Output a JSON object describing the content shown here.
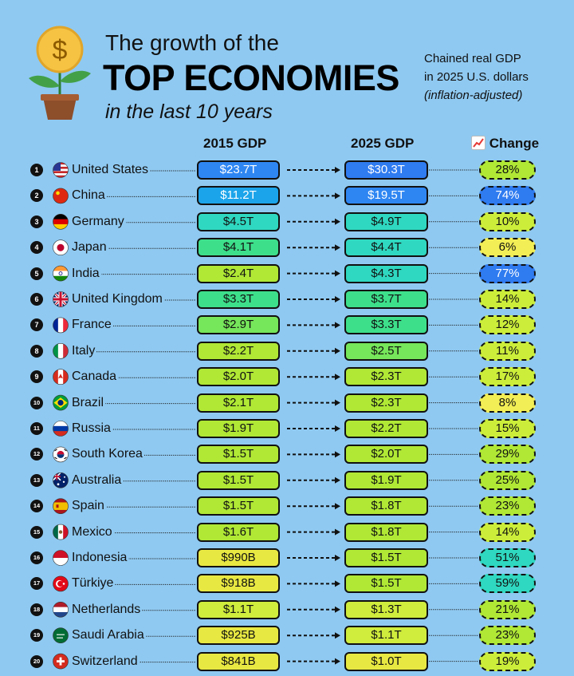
{
  "header": {
    "title_line1": "The growth of the",
    "title_line2": "TOP ECONOMIES",
    "title_line3": "in the last 10 years",
    "note_line1": "Chained real GDP",
    "note_line2": "in 2025 U.S. dollars",
    "note_line3": "(inflation-adjusted)",
    "col_2015": "2015 GDP",
    "col_2025": "2025 GDP",
    "col_change": "Change",
    "change_icon": "chart-increasing-icon",
    "plant_icon": "money-plant-icon"
  },
  "chart_data": {
    "type": "table",
    "title": "TOP ECONOMIES",
    "columns": [
      "2015 GDP",
      "2025 GDP",
      "Change"
    ],
    "rows": [
      {
        "rank": "1",
        "country": "United States",
        "gdp2015": "$23.7T",
        "gdp2025": "$30.3T",
        "change": "28%",
        "v2015": 23.7,
        "v2025": 30.3,
        "pct": 28
      },
      {
        "rank": "2",
        "country": "China",
        "gdp2015": "$11.2T",
        "gdp2025": "$19.5T",
        "change": "74%",
        "v2015": 11.2,
        "v2025": 19.5,
        "pct": 74
      },
      {
        "rank": "3",
        "country": "Germany",
        "gdp2015": "$4.5T",
        "gdp2025": "$4.9T",
        "change": "10%",
        "v2015": 4.5,
        "v2025": 4.9,
        "pct": 10
      },
      {
        "rank": "4",
        "country": "Japan",
        "gdp2015": "$4.1T",
        "gdp2025": "$4.4T",
        "change": "6%",
        "v2015": 4.1,
        "v2025": 4.4,
        "pct": 6
      },
      {
        "rank": "5",
        "country": "India",
        "gdp2015": "$2.4T",
        "gdp2025": "$4.3T",
        "change": "77%",
        "v2015": 2.4,
        "v2025": 4.3,
        "pct": 77
      },
      {
        "rank": "6",
        "country": "United Kingdom",
        "gdp2015": "$3.3T",
        "gdp2025": "$3.7T",
        "change": "14%",
        "v2015": 3.3,
        "v2025": 3.7,
        "pct": 14
      },
      {
        "rank": "7",
        "country": "France",
        "gdp2015": "$2.9T",
        "gdp2025": "$3.3T",
        "change": "12%",
        "v2015": 2.9,
        "v2025": 3.3,
        "pct": 12
      },
      {
        "rank": "8",
        "country": "Italy",
        "gdp2015": "$2.2T",
        "gdp2025": "$2.5T",
        "change": "11%",
        "v2015": 2.2,
        "v2025": 2.5,
        "pct": 11
      },
      {
        "rank": "9",
        "country": "Canada",
        "gdp2015": "$2.0T",
        "gdp2025": "$2.3T",
        "change": "17%",
        "v2015": 2.0,
        "v2025": 2.3,
        "pct": 17
      },
      {
        "rank": "10",
        "country": "Brazil",
        "gdp2015": "$2.1T",
        "gdp2025": "$2.3T",
        "change": "8%",
        "v2015": 2.1,
        "v2025": 2.3,
        "pct": 8
      },
      {
        "rank": "11",
        "country": "Russia",
        "gdp2015": "$1.9T",
        "gdp2025": "$2.2T",
        "change": "15%",
        "v2015": 1.9,
        "v2025": 2.2,
        "pct": 15
      },
      {
        "rank": "12",
        "country": "South Korea",
        "gdp2015": "$1.5T",
        "gdp2025": "$2.0T",
        "change": "29%",
        "v2015": 1.5,
        "v2025": 2.0,
        "pct": 29
      },
      {
        "rank": "13",
        "country": "Australia",
        "gdp2015": "$1.5T",
        "gdp2025": "$1.9T",
        "change": "25%",
        "v2015": 1.5,
        "v2025": 1.9,
        "pct": 25
      },
      {
        "rank": "14",
        "country": "Spain",
        "gdp2015": "$1.5T",
        "gdp2025": "$1.8T",
        "change": "23%",
        "v2015": 1.5,
        "v2025": 1.8,
        "pct": 23
      },
      {
        "rank": "15",
        "country": "Mexico",
        "gdp2015": "$1.6T",
        "gdp2025": "$1.8T",
        "change": "14%",
        "v2015": 1.6,
        "v2025": 1.8,
        "pct": 14
      },
      {
        "rank": "16",
        "country": "Indonesia",
        "gdp2015": "$990B",
        "gdp2025": "$1.5T",
        "change": "51%",
        "v2015": 0.99,
        "v2025": 1.5,
        "pct": 51
      },
      {
        "rank": "17",
        "country": "Türkiye",
        "gdp2015": "$918B",
        "gdp2025": "$1.5T",
        "change": "59%",
        "v2015": 0.918,
        "v2025": 1.5,
        "pct": 59
      },
      {
        "rank": "18",
        "country": "Netherlands",
        "gdp2015": "$1.1T",
        "gdp2025": "$1.3T",
        "change": "21%",
        "v2015": 1.1,
        "v2025": 1.3,
        "pct": 21
      },
      {
        "rank": "19",
        "country": "Saudi Arabia",
        "gdp2015": "$925B",
        "gdp2025": "$1.1T",
        "change": "23%",
        "v2015": 0.925,
        "v2025": 1.1,
        "pct": 23
      },
      {
        "rank": "20",
        "country": "Switzerland",
        "gdp2015": "$841B",
        "gdp2025": "$1.0T",
        "change": "19%",
        "v2015": 0.841,
        "v2025": 1.0,
        "pct": 19
      }
    ],
    "flag_icons": [
      "us-flag-icon",
      "china-flag-icon",
      "germany-flag-icon",
      "japan-flag-icon",
      "india-flag-icon",
      "uk-flag-icon",
      "france-flag-icon",
      "italy-flag-icon",
      "canada-flag-icon",
      "brazil-flag-icon",
      "russia-flag-icon",
      "south-korea-flag-icon",
      "australia-flag-icon",
      "spain-flag-icon",
      "mexico-flag-icon",
      "indonesia-flag-icon",
      "turkiye-flag-icon",
      "netherlands-flag-icon",
      "saudi-arabia-flag-icon",
      "switzerland-flag-icon"
    ]
  }
}
